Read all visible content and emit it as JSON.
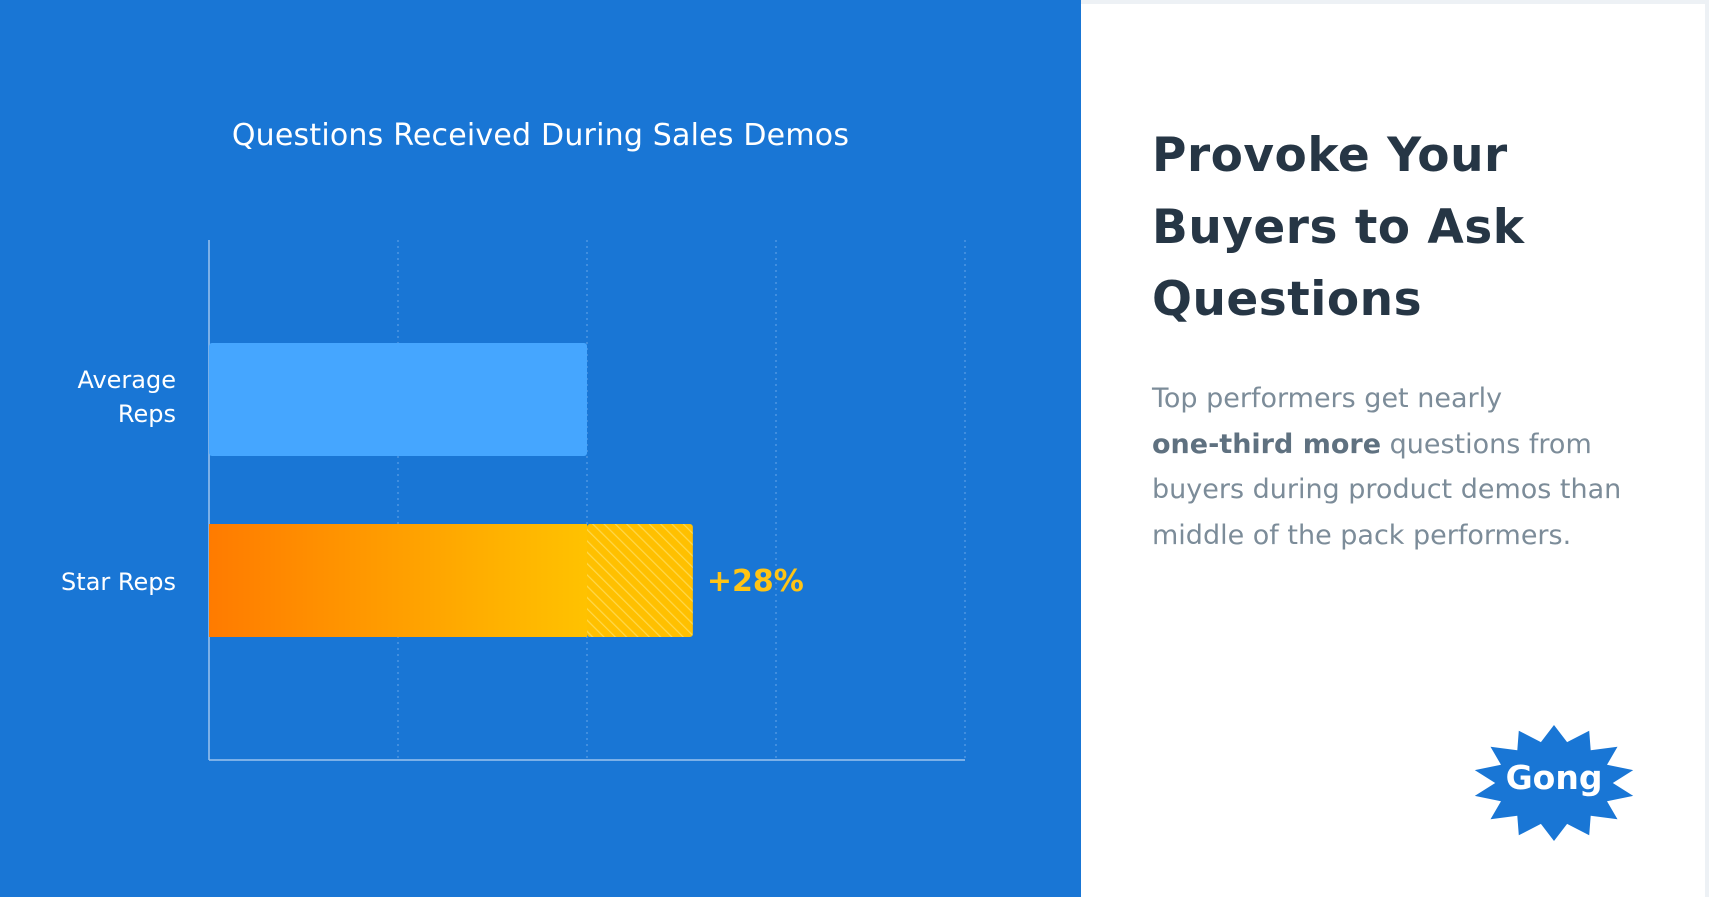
{
  "chart_data": {
    "type": "bar",
    "orientation": "horizontal",
    "title": "Questions Received During Sales Demos",
    "categories": [
      "Average\nReps",
      "Star Reps"
    ],
    "values": [
      100,
      128
    ],
    "baseline_value": 100,
    "annotations": [
      {
        "category": "Star Reps",
        "text": "+28%"
      }
    ],
    "xlim": [
      0,
      200
    ],
    "grid": true,
    "xlabel": "",
    "ylabel": "",
    "colors": {
      "panel": "#1976d5",
      "average_bar": "#45a6ff",
      "star_bar_start": "#ff7b00",
      "star_bar_end": "#ffc200",
      "hatch": "#ffd84a",
      "annotation": "#ffc414",
      "axis": "#9cc4ef",
      "grid": "#5b9ee6"
    }
  },
  "panel": {
    "headline": "Provoke Your Buyers to Ask Questions",
    "body_before": "Top performers get nearly",
    "body_bold": "one-third more",
    "body_after": "questions from buyers during product demos than middle of the pack performers."
  },
  "logo": {
    "text": "Gong",
    "color": "#1976d5"
  }
}
